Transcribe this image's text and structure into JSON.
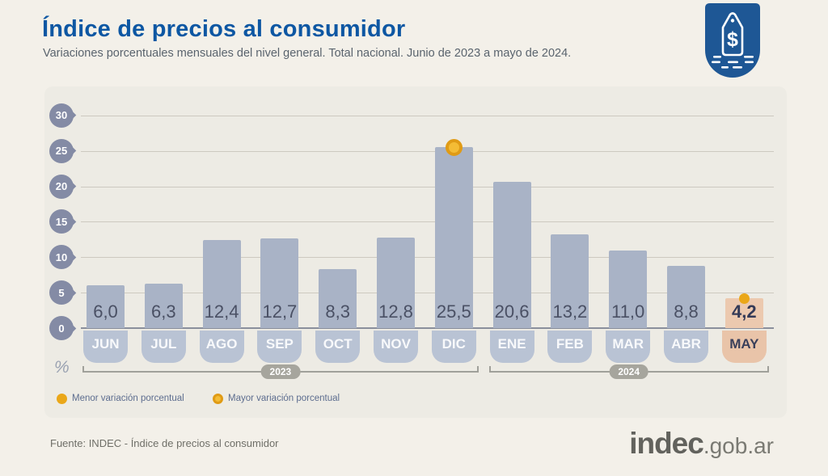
{
  "header": {
    "title": "Índice de precios al consumidor",
    "subtitle": "Variaciones porcentuales mensuales del nivel general. Total nacional. Junio de 2023 a mayo de 2024."
  },
  "badge": {
    "icon": "price-tag-icon",
    "symbol": "$"
  },
  "chart_data": {
    "type": "bar",
    "title": "Índice de precios al consumidor",
    "xlabel": "",
    "ylabel": "%",
    "ylim": [
      0,
      30
    ],
    "yticks": [
      30,
      25,
      20,
      15,
      10,
      5,
      0
    ],
    "grid": true,
    "categories": [
      "JUN",
      "JUL",
      "AGO",
      "SEP",
      "OCT",
      "NOV",
      "DIC",
      "ENE",
      "FEB",
      "MAR",
      "ABR",
      "MAY"
    ],
    "values": [
      6.0,
      6.3,
      12.4,
      12.7,
      8.3,
      12.8,
      25.5,
      20.6,
      13.2,
      11.0,
      8.8,
      4.2
    ],
    "value_labels": [
      "6,0",
      "6,3",
      "12,4",
      "12,7",
      "8,3",
      "12,8",
      "25,5",
      "20,6",
      "13,2",
      "11,0",
      "8,8",
      "4,2"
    ],
    "year_groups": [
      {
        "label": "2023",
        "from": 0,
        "to": 6
      },
      {
        "label": "2024",
        "from": 7,
        "to": 11
      }
    ],
    "highlight": {
      "max_index": 6,
      "min_index": 11
    },
    "colors": {
      "bar": "#a9b3c6",
      "bar_highlight": "#ecc9af",
      "tab": "#b9c3d4",
      "tab_highlight": "#e9c4a9",
      "value_text": "#4a5064",
      "value_text_highlight": "#343a57",
      "month_text": "#f8f9fb",
      "month_text_highlight": "#3a3f5a",
      "pin": "#848ba5",
      "grid": "#cdc9c0",
      "baseline": "#8a8f9c",
      "dot_solid": "#eaa719",
      "dot_ring_fill": "#f4bc35",
      "dot_ring_border": "#e09b15",
      "bracket": "#a0a09a",
      "pill": "#a6a59d"
    }
  },
  "legend": [
    {
      "marker": "solid",
      "label": "Menor variación porcentual"
    },
    {
      "marker": "ring",
      "label": "Mayor variación porcentual"
    }
  ],
  "footer": {
    "source": "Fuente: INDEC - Índice de precios al consumidor",
    "logo_main": "indec",
    "logo_suffix": ".gob.ar"
  },
  "theme": {
    "bg": "#f3f0e9",
    "panel": "#edebe4",
    "accent": "#0d57a3",
    "subtitle": "#5a646e",
    "badge": "#1e5795",
    "footer_text": "#6f6f68",
    "logo": "#62625d",
    "legend_text": "#5d6d8f",
    "axis_label": "#9aa2b2"
  }
}
